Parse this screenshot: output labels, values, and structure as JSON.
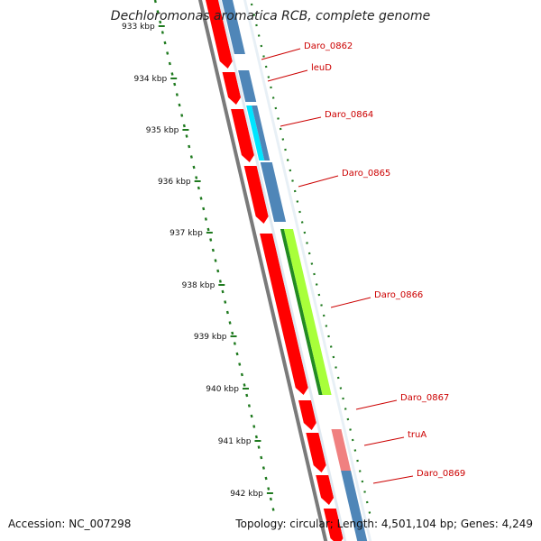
{
  "title": "Dechloromonas aromatica RCB, complete genome",
  "accession": "Accession: NC_007298",
  "summary": {
    "topology": "Topology: circular;",
    "length": "Length: 4,501,104 bp;",
    "genes": "Genes: 4,249"
  },
  "colors": {
    "forward": "#ff0000",
    "backbone": "#7a7a7a",
    "tick": "#1f7a1f",
    "label": "#cc0000",
    "blue": "#4f86b8",
    "cyan": "#00e5ff",
    "green_dark": "#228b22",
    "green_light": "#a8ff3a",
    "pink": "#f08080"
  },
  "scale": {
    "labels": [
      "933 kbp",
      "934 kbp",
      "935 kbp",
      "936 kbp",
      "937 kbp",
      "938 kbp",
      "939 kbp",
      "940 kbp",
      "941 kbp",
      "942 kbp"
    ]
  },
  "genes": [
    {
      "label": "Daro_0862"
    },
    {
      "label": "leuD"
    },
    {
      "label": "Daro_0864"
    },
    {
      "label": "Daro_0865"
    },
    {
      "label": "Daro_0866"
    },
    {
      "label": "Daro_0867"
    },
    {
      "label": "truA"
    },
    {
      "label": "Daro_0869"
    }
  ]
}
